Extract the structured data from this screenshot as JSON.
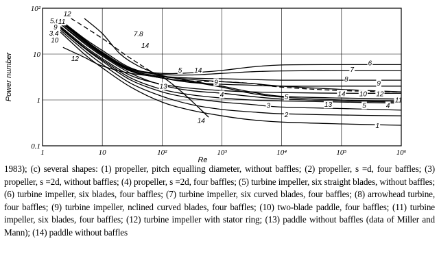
{
  "chart_data": {
    "type": "line",
    "title": "",
    "xlabel": "Re",
    "ylabel": "Power number",
    "x_scale": "log",
    "y_scale": "log",
    "xlim": [
      1,
      1000000
    ],
    "ylim": [
      0.1,
      100
    ],
    "x_ticks": [
      {
        "value": 1,
        "label": "1"
      },
      {
        "value": 10,
        "label": "10"
      },
      {
        "value": 100,
        "label": "10²"
      },
      {
        "value": 1000,
        "label": "10³"
      },
      {
        "value": 10000,
        "label": "10⁴"
      },
      {
        "value": 100000,
        "label": "10⁵"
      },
      {
        "value": 1000000,
        "label": "10⁶"
      }
    ],
    "y_ticks": [
      {
        "value": 100,
        "label": "10²"
      },
      {
        "value": 10,
        "label": "10"
      },
      {
        "value": 1,
        "label": "1"
      },
      {
        "value": 0.1,
        "label": "0.1"
      }
    ],
    "grid": true,
    "series": [
      {
        "label": "1",
        "dashed": false,
        "x": [
          2,
          5,
          10,
          30,
          100,
          300,
          1000,
          3000,
          10000,
          100000,
          1000000
        ],
        "y": [
          30,
          10,
          5,
          1.9,
          0.9,
          0.6,
          0.45,
          0.37,
          0.33,
          0.3,
          0.28
        ]
      },
      {
        "label": "2",
        "dashed": false,
        "x": [
          2,
          5,
          10,
          30,
          100,
          300,
          1000,
          3000,
          10000,
          100000,
          1000000
        ],
        "y": [
          33,
          12,
          6,
          2.3,
          1.2,
          0.8,
          0.62,
          0.55,
          0.5,
          0.47,
          0.45
        ]
      },
      {
        "label": "3",
        "dashed": false,
        "x": [
          2,
          5,
          10,
          30,
          100,
          300,
          1000,
          3000,
          10000,
          100000,
          1000000
        ],
        "y": [
          36,
          13.5,
          7,
          2.7,
          1.5,
          1.1,
          0.9,
          0.8,
          0.7,
          0.65,
          0.6
        ]
      },
      {
        "label": "4",
        "dashed": false,
        "x": [
          2,
          5,
          10,
          30,
          100,
          300,
          1000,
          3000,
          10000,
          100000,
          1000000
        ],
        "y": [
          38,
          14,
          7.5,
          3,
          1.7,
          1.3,
          1.1,
          1.0,
          0.95,
          0.9,
          0.85
        ]
      },
      {
        "label": "5",
        "dashed": false,
        "x": [
          2,
          5,
          10,
          30,
          100,
          300,
          1000,
          3000,
          10000,
          100000,
          1000000
        ],
        "y": [
          50,
          20,
          10,
          4.3,
          3.0,
          2.5,
          1.9,
          1.4,
          1.15,
          1.0,
          0.95
        ]
      },
      {
        "label": "6",
        "dashed": false,
        "x": [
          1.8,
          5,
          10,
          30,
          100,
          300,
          1000,
          3000,
          10000,
          100000,
          1000000
        ],
        "y": [
          60,
          21,
          11,
          4.8,
          3.8,
          3.9,
          4.4,
          5.2,
          5.8,
          5.9,
          5.9
        ]
      },
      {
        "label": "7",
        "dashed": false,
        "x": [
          1.8,
          5,
          10,
          30,
          100,
          300,
          1000,
          3000,
          10000,
          100000,
          1000000
        ],
        "y": [
          58,
          20,
          10.5,
          4.6,
          3.6,
          3.5,
          3.8,
          4.1,
          4.3,
          4.4,
          4.4
        ]
      },
      {
        "label": "8",
        "dashed": false,
        "x": [
          1.9,
          5,
          10,
          30,
          100,
          300,
          1000,
          3000,
          10000,
          100000,
          1000000
        ],
        "y": [
          52,
          19,
          10,
          4.4,
          3.3,
          3.0,
          2.9,
          2.8,
          2.7,
          2.7,
          2.7
        ]
      },
      {
        "label": "9",
        "dashed": false,
        "x": [
          1.9,
          5,
          10,
          30,
          100,
          300,
          1000,
          3000,
          10000,
          100000,
          1000000
        ],
        "y": [
          48,
          18,
          9.5,
          4.2,
          3.0,
          2.4,
          2.2,
          2.1,
          2.0,
          2.0,
          2.0
        ]
      },
      {
        "label": "10",
        "dashed": false,
        "x": [
          2,
          5,
          10,
          30,
          100,
          300,
          1000,
          3000,
          10000,
          100000,
          1000000
        ],
        "y": [
          40,
          15,
          8,
          3.4,
          2.2,
          1.8,
          1.6,
          1.5,
          1.45,
          1.4,
          1.4
        ]
      },
      {
        "label": "11",
        "dashed": false,
        "x": [
          2,
          5,
          10,
          30,
          100,
          300,
          1000,
          3000,
          10000,
          100000,
          1000000
        ],
        "y": [
          55,
          22,
          12,
          5.0,
          3.4,
          2.6,
          2.0,
          1.5,
          1.2,
          1.1,
          1.05
        ]
      },
      {
        "label": "12",
        "dashed": false,
        "x": [
          2.2,
          5,
          10,
          30,
          100,
          300,
          1000,
          3000,
          10000,
          100000,
          1000000
        ],
        "y": [
          14,
          8.5,
          5.5,
          3.8,
          3.2,
          2.8,
          2.5,
          2.3,
          2.0,
          1.7,
          1.5
        ]
      },
      {
        "label": "13",
        "dashed": false,
        "x": [
          2,
          5,
          10,
          30,
          100,
          300,
          1000,
          3000,
          10000,
          100000,
          1000000
        ],
        "y": [
          45,
          17,
          9,
          3.8,
          2.1,
          1.6,
          1.4,
          1.2,
          1.05,
          0.95,
          0.9
        ]
      },
      {
        "label": "14",
        "dashed": true,
        "x": [
          3,
          10,
          30,
          100,
          300,
          1000,
          3000,
          10000,
          100000,
          1000000
        ],
        "y": [
          60,
          22,
          8,
          3.2,
          2.6,
          2.5,
          2.3,
          1.9,
          1.6,
          1.5
        ]
      },
      {
        "label": "14",
        "dashed": false,
        "x": [
          5,
          10,
          20,
          40,
          100,
          200,
          400,
          600
        ],
        "y": [
          60,
          28,
          10,
          5.5,
          3.2,
          1.6,
          0.7,
          0.42
        ]
      }
    ],
    "curve_labels": [
      {
        "text": "12",
        "x": 2.6,
        "y": 75
      },
      {
        "text": "5.6",
        "x": 1.6,
        "y": 52
      },
      {
        "text": "11",
        "x": 2.1,
        "y": 50
      },
      {
        "text": "9",
        "x": 1.65,
        "y": 38
      },
      {
        "text": "3.4",
        "x": 1.55,
        "y": 28
      },
      {
        "text": "10",
        "x": 1.6,
        "y": 20
      },
      {
        "text": "7.8",
        "x": 40,
        "y": 27
      },
      {
        "text": "14",
        "x": 52,
        "y": 15
      },
      {
        "text": "12",
        "x": 3.5,
        "y": 7.8
      },
      {
        "text": "5",
        "x": 200,
        "y": 4.4
      },
      {
        "text": "14",
        "x": 400,
        "y": 4.4
      },
      {
        "text": "13",
        "x": 105,
        "y": 1.95
      },
      {
        "text": "9",
        "x": 800,
        "y": 2.4
      },
      {
        "text": "4",
        "x": 1000,
        "y": 1.3
      },
      {
        "text": "5",
        "x": 12000,
        "y": 1.15
      },
      {
        "text": "6",
        "x": 300000,
        "y": 6.3
      },
      {
        "text": "7",
        "x": 150000,
        "y": 4.5
      },
      {
        "text": "8",
        "x": 120000,
        "y": 2.8
      },
      {
        "text": "9",
        "x": 420000,
        "y": 2.3
      },
      {
        "text": "14",
        "x": 100000,
        "y": 1.35
      },
      {
        "text": "10",
        "x": 230000,
        "y": 1.35
      },
      {
        "text": "12",
        "x": 440000,
        "y": 1.35
      },
      {
        "text": "11",
        "x": 900000,
        "y": 0.98
      },
      {
        "text": "3",
        "x": 6000,
        "y": 0.75
      },
      {
        "text": "13",
        "x": 60000,
        "y": 0.78
      },
      {
        "text": "5",
        "x": 240000,
        "y": 0.75
      },
      {
        "text": "4",
        "x": 600000,
        "y": 0.75
      },
      {
        "text": "2",
        "x": 12000,
        "y": 0.47
      },
      {
        "text": "1",
        "x": 400000,
        "y": 0.27
      },
      {
        "text": "14",
        "x": 450,
        "y": 0.35
      }
    ]
  },
  "caption": "1983); (c) several shapes: (1) propeller, pitch equalling diameter, without baffles; (2) propeller, s =d, four baffles; (3) propeller, s =2d, without baffles; (4) propeller, s =2d, four baffles; (5) turbine impeller, six straight blades, without baffles; (6) turbine impeller, six blades, four baffles; (7) turbine impeller, six curved blades, four baffles; (8) arrowhead turbine, four baffles; (9) turbine impeller, nclined curved blades, four baffles; (10) two-blade paddle, four baffles; (11) turbine impeller, six blades, four baffles; (12) turbine impeller with stator ring; (13) paddle without baffles (data of Miller and Mann); (14) paddle without baffles"
}
